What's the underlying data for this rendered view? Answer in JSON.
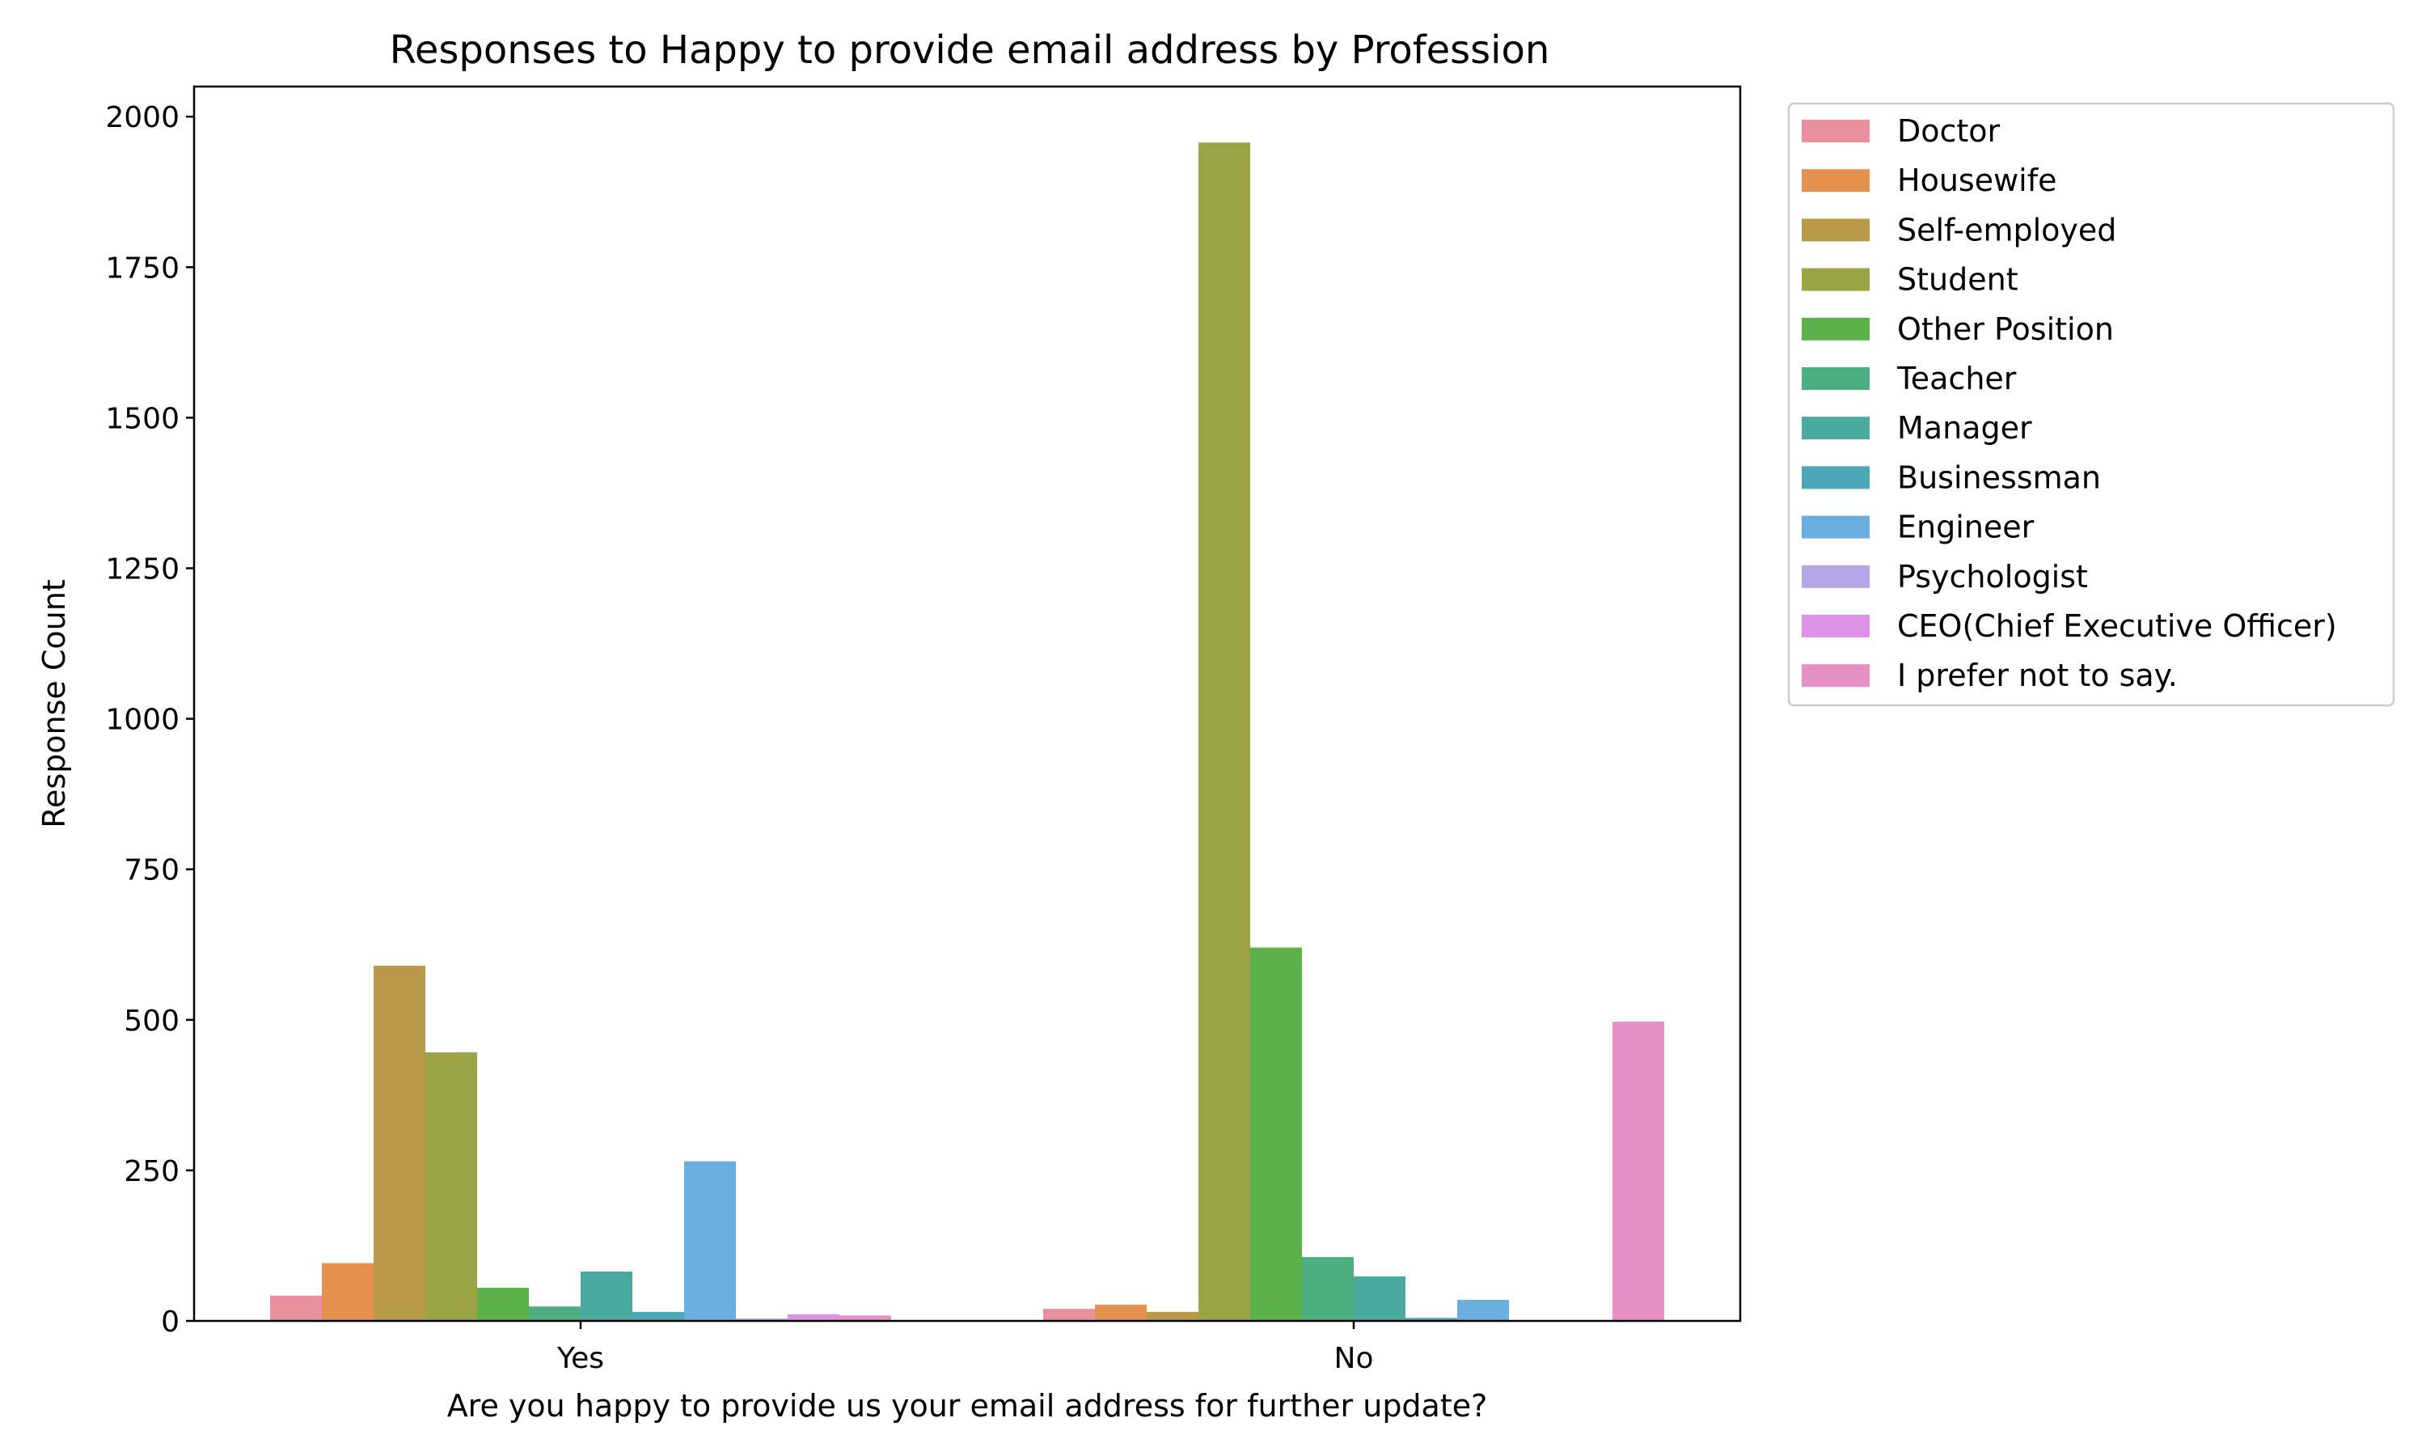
{
  "chart_data": {
    "type": "bar",
    "title": "Responses to Happy to provide email address by Profession",
    "xlabel": "Are you happy to provide us your email address for further update?",
    "ylabel": "Response Count",
    "categories": [
      "Yes",
      "No"
    ],
    "ylim": [
      0,
      2050
    ],
    "yticks": [
      0,
      250,
      500,
      750,
      1000,
      1250,
      1500,
      1750,
      2000
    ],
    "grid": false,
    "legend_position": "outside-top-right",
    "series": [
      {
        "name": "Doctor",
        "color": "#e8919c",
        "values": [
          42,
          20
        ]
      },
      {
        "name": "Housewife",
        "color": "#e4904f",
        "values": [
          96,
          27
        ]
      },
      {
        "name": "Self-employed",
        "color": "#b89a49",
        "values": [
          590,
          15
        ]
      },
      {
        "name": "Student",
        "color": "#9aa445",
        "values": [
          446,
          1957
        ]
      },
      {
        "name": "Other Position",
        "color": "#5db14a",
        "values": [
          55,
          620
        ]
      },
      {
        "name": "Teacher",
        "color": "#4daf81",
        "values": [
          24,
          106
        ]
      },
      {
        "name": "Manager",
        "color": "#4aaa9f",
        "values": [
          82,
          74
        ]
      },
      {
        "name": "Businessman",
        "color": "#4aa8b8",
        "values": [
          15,
          5
        ]
      },
      {
        "name": "Engineer",
        "color": "#6aaee0",
        "values": [
          265,
          35
        ]
      },
      {
        "name": "Psychologist",
        "color": "#b6a6e8",
        "values": [
          4,
          0
        ]
      },
      {
        "name": "CEO(Chief Executive Officer)",
        "color": "#dd92e5",
        "values": [
          11,
          0
        ]
      },
      {
        "name": "I prefer not to say.",
        "color": "#e790c5",
        "values": [
          9,
          497
        ]
      }
    ]
  }
}
